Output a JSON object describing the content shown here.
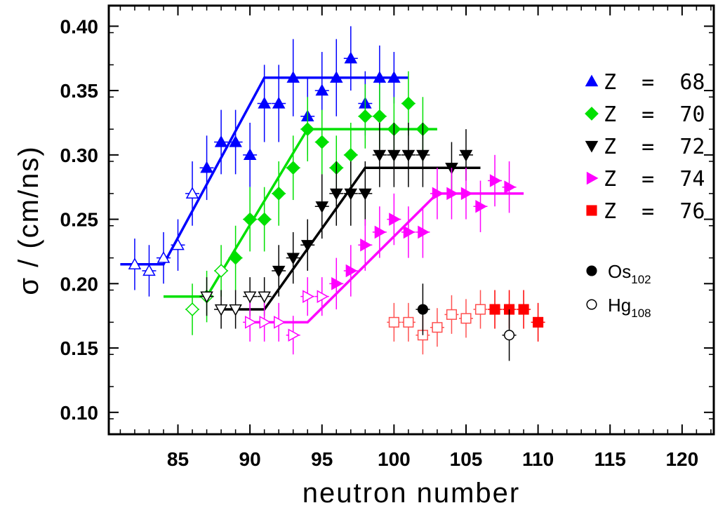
{
  "chart_data": {
    "type": "scatter",
    "xlabel": "neutron number",
    "ylabel": "σ  /  (cm/ns)",
    "xlim": [
      80.2,
      122.2
    ],
    "ylim": [
      0.083,
      0.416
    ],
    "x_ticks": [
      85,
      90,
      95,
      100,
      105,
      110,
      115,
      120
    ],
    "y_ticks": [
      0.1,
      0.15,
      0.2,
      0.25,
      0.3,
      0.35,
      0.4
    ],
    "x_tick_labels": [
      "85",
      "90",
      "95",
      "100",
      "105",
      "110",
      "115",
      "120"
    ],
    "y_tick_labels": [
      "0.10",
      "0.15",
      "0.20",
      "0.25",
      "0.30",
      "0.35",
      "0.40"
    ],
    "grid": false,
    "legend_position": "right",
    "series": [
      {
        "name": "Z = 68",
        "color": "#0000ff",
        "marker": "triangle-up",
        "points": [
          {
            "x": 82,
            "y": 0.215,
            "err": 0.02,
            "filled": false
          },
          {
            "x": 83,
            "y": 0.21,
            "err": 0.02,
            "filled": false
          },
          {
            "x": 84,
            "y": 0.22,
            "err": 0.02,
            "filled": false
          },
          {
            "x": 85,
            "y": 0.23,
            "err": 0.02,
            "filled": false
          },
          {
            "x": 86,
            "y": 0.27,
            "err": 0.025,
            "filled": false
          },
          {
            "x": 87,
            "y": 0.29,
            "err": 0.025,
            "filled": true
          },
          {
            "x": 88,
            "y": 0.31,
            "err": 0.025,
            "filled": true
          },
          {
            "x": 89,
            "y": 0.31,
            "err": 0.025,
            "filled": true
          },
          {
            "x": 90,
            "y": 0.3,
            "err": 0.025,
            "filled": true
          },
          {
            "x": 91,
            "y": 0.34,
            "err": 0.03,
            "filled": true
          },
          {
            "x": 92,
            "y": 0.34,
            "err": 0.03,
            "filled": true
          },
          {
            "x": 93,
            "y": 0.36,
            "err": 0.03,
            "filled": true
          },
          {
            "x": 94,
            "y": 0.33,
            "err": 0.03,
            "filled": true
          },
          {
            "x": 95,
            "y": 0.35,
            "err": 0.03,
            "filled": true
          },
          {
            "x": 96,
            "y": 0.36,
            "err": 0.03,
            "filled": true
          },
          {
            "x": 97,
            "y": 0.375,
            "err": 0.025,
            "filled": true
          },
          {
            "x": 98,
            "y": 0.34,
            "err": 0.025,
            "filled": true
          },
          {
            "x": 99,
            "y": 0.36,
            "err": 0.025,
            "filled": true
          },
          {
            "x": 100,
            "y": 0.36,
            "err": 0.02,
            "filled": true
          }
        ],
        "fit": [
          [
            81,
            0.215
          ],
          [
            84,
            0.215
          ],
          [
            91,
            0.36
          ],
          [
            101,
            0.36
          ]
        ]
      },
      {
        "name": "Z = 70",
        "color": "#00e000",
        "marker": "diamond",
        "points": [
          {
            "x": 86,
            "y": 0.18,
            "err": 0.02,
            "filled": false
          },
          {
            "x": 87,
            "y": 0.19,
            "err": 0.02,
            "filled": false
          },
          {
            "x": 88,
            "y": 0.21,
            "err": 0.02,
            "filled": false
          },
          {
            "x": 89,
            "y": 0.22,
            "err": 0.025,
            "filled": true
          },
          {
            "x": 90,
            "y": 0.25,
            "err": 0.025,
            "filled": true
          },
          {
            "x": 91,
            "y": 0.25,
            "err": 0.025,
            "filled": true
          },
          {
            "x": 92,
            "y": 0.27,
            "err": 0.025,
            "filled": true
          },
          {
            "x": 93,
            "y": 0.29,
            "err": 0.025,
            "filled": true
          },
          {
            "x": 94,
            "y": 0.32,
            "err": 0.025,
            "filled": true
          },
          {
            "x": 95,
            "y": 0.31,
            "err": 0.025,
            "filled": true
          },
          {
            "x": 96,
            "y": 0.29,
            "err": 0.025,
            "filled": true
          },
          {
            "x": 97,
            "y": 0.3,
            "err": 0.025,
            "filled": true
          },
          {
            "x": 98,
            "y": 0.33,
            "err": 0.025,
            "filled": true
          },
          {
            "x": 99,
            "y": 0.33,
            "err": 0.025,
            "filled": true
          },
          {
            "x": 100,
            "y": 0.32,
            "err": 0.025,
            "filled": true
          },
          {
            "x": 101,
            "y": 0.34,
            "err": 0.025,
            "filled": true
          },
          {
            "x": 102,
            "y": 0.32,
            "err": 0.025,
            "filled": true
          }
        ],
        "fit": [
          [
            84,
            0.19
          ],
          [
            87,
            0.19
          ],
          [
            94,
            0.32
          ],
          [
            103,
            0.32
          ]
        ]
      },
      {
        "name": "Z = 72",
        "color": "#000000",
        "marker": "triangle-down",
        "points": [
          {
            "x": 87,
            "y": 0.19,
            "err": 0.015,
            "filled": false
          },
          {
            "x": 88,
            "y": 0.18,
            "err": 0.015,
            "filled": false
          },
          {
            "x": 89,
            "y": 0.18,
            "err": 0.015,
            "filled": false
          },
          {
            "x": 90,
            "y": 0.19,
            "err": 0.015,
            "filled": false
          },
          {
            "x": 91,
            "y": 0.19,
            "err": 0.015,
            "filled": false
          },
          {
            "x": 92,
            "y": 0.21,
            "err": 0.02,
            "filled": true
          },
          {
            "x": 93,
            "y": 0.22,
            "err": 0.02,
            "filled": true
          },
          {
            "x": 94,
            "y": 0.23,
            "err": 0.02,
            "filled": true
          },
          {
            "x": 95,
            "y": 0.26,
            "err": 0.025,
            "filled": true
          },
          {
            "x": 96,
            "y": 0.27,
            "err": 0.025,
            "filled": true
          },
          {
            "x": 97,
            "y": 0.27,
            "err": 0.025,
            "filled": true
          },
          {
            "x": 98,
            "y": 0.27,
            "err": 0.025,
            "filled": true
          },
          {
            "x": 99,
            "y": 0.3,
            "err": 0.025,
            "filled": true
          },
          {
            "x": 100,
            "y": 0.3,
            "err": 0.025,
            "filled": true
          },
          {
            "x": 101,
            "y": 0.3,
            "err": 0.025,
            "filled": true
          },
          {
            "x": 102,
            "y": 0.3,
            "err": 0.025,
            "filled": true
          },
          {
            "x": 104,
            "y": 0.29,
            "err": 0.02,
            "filled": true
          },
          {
            "x": 105,
            "y": 0.3,
            "err": 0.02,
            "filled": true
          }
        ],
        "fit": [
          [
            88,
            0.18
          ],
          [
            91,
            0.18
          ],
          [
            98,
            0.29
          ],
          [
            106,
            0.29
          ]
        ]
      },
      {
        "name": "Z = 74",
        "color": "#ff00ff",
        "marker": "triangle-right",
        "points": [
          {
            "x": 90,
            "y": 0.17,
            "err": 0.015,
            "filled": false
          },
          {
            "x": 91,
            "y": 0.17,
            "err": 0.015,
            "filled": false
          },
          {
            "x": 92,
            "y": 0.17,
            "err": 0.015,
            "filled": false
          },
          {
            "x": 93,
            "y": 0.16,
            "err": 0.015,
            "filled": false
          },
          {
            "x": 94,
            "y": 0.19,
            "err": 0.015,
            "filled": false
          },
          {
            "x": 95,
            "y": 0.19,
            "err": 0.015,
            "filled": false
          },
          {
            "x": 96,
            "y": 0.2,
            "err": 0.02,
            "filled": true
          },
          {
            "x": 97,
            "y": 0.21,
            "err": 0.02,
            "filled": true
          },
          {
            "x": 98,
            "y": 0.23,
            "err": 0.02,
            "filled": true
          },
          {
            "x": 99,
            "y": 0.24,
            "err": 0.02,
            "filled": true
          },
          {
            "x": 100,
            "y": 0.25,
            "err": 0.02,
            "filled": true
          },
          {
            "x": 101,
            "y": 0.24,
            "err": 0.02,
            "filled": true
          },
          {
            "x": 102,
            "y": 0.24,
            "err": 0.02,
            "filled": true
          },
          {
            "x": 103,
            "y": 0.27,
            "err": 0.02,
            "filled": true
          },
          {
            "x": 104,
            "y": 0.27,
            "err": 0.02,
            "filled": true
          },
          {
            "x": 105,
            "y": 0.27,
            "err": 0.02,
            "filled": true
          },
          {
            "x": 106,
            "y": 0.26,
            "err": 0.02,
            "filled": true
          },
          {
            "x": 107,
            "y": 0.28,
            "err": 0.02,
            "filled": true
          },
          {
            "x": 108,
            "y": 0.275,
            "err": 0.02,
            "filled": true
          }
        ],
        "fit": [
          [
            90,
            0.17
          ],
          [
            94,
            0.17
          ],
          [
            103,
            0.27
          ],
          [
            109,
            0.27
          ]
        ]
      },
      {
        "name": "Z = 76",
        "color": "#ff0000",
        "marker": "square",
        "points": [
          {
            "x": 100,
            "y": 0.17,
            "err": 0.015,
            "filled": false
          },
          {
            "x": 101,
            "y": 0.17,
            "err": 0.015,
            "filled": false
          },
          {
            "x": 102,
            "y": 0.16,
            "err": 0.015,
            "filled": false
          },
          {
            "x": 103,
            "y": 0.166,
            "err": 0.015,
            "filled": false
          },
          {
            "x": 104,
            "y": 0.176,
            "err": 0.015,
            "filled": false
          },
          {
            "x": 105,
            "y": 0.173,
            "err": 0.015,
            "filled": false
          },
          {
            "x": 106,
            "y": 0.18,
            "err": 0.015,
            "filled": false
          },
          {
            "x": 107,
            "y": 0.18,
            "err": 0.015,
            "filled": true
          },
          {
            "x": 108,
            "y": 0.18,
            "err": 0.015,
            "filled": true
          },
          {
            "x": 109,
            "y": 0.18,
            "err": 0.015,
            "filled": true
          },
          {
            "x": 110,
            "y": 0.17,
            "err": 0.015,
            "filled": true
          }
        ]
      },
      {
        "name": "Os102",
        "color": "#000000",
        "marker": "circle",
        "points": [
          {
            "x": 102,
            "y": 0.18,
            "err": 0.02,
            "filled": true
          }
        ]
      },
      {
        "name": "Hg108",
        "color": "#000000",
        "marker": "circle",
        "points": [
          {
            "x": 108,
            "y": 0.16,
            "err": 0.02,
            "filled": false
          }
        ]
      }
    ],
    "legend": [
      {
        "label": "Z  =  68",
        "marker": "triangle-up",
        "color": "#0000ff"
      },
      {
        "label": "Z  =  70",
        "marker": "diamond",
        "color": "#00e000"
      },
      {
        "label": "Z  =  72",
        "marker": "triangle-down",
        "color": "#000000"
      },
      {
        "label": "Z  =  74",
        "marker": "triangle-right",
        "color": "#ff00ff"
      },
      {
        "label": "Z  =  76",
        "marker": "square",
        "color": "#ff0000"
      },
      {
        "label": "Os",
        "sub": "102",
        "marker": "circle",
        "color": "#000000",
        "filled": true
      },
      {
        "label": "Hg",
        "sub": "108",
        "marker": "circle",
        "color": "#000000",
        "filled": false
      }
    ]
  }
}
